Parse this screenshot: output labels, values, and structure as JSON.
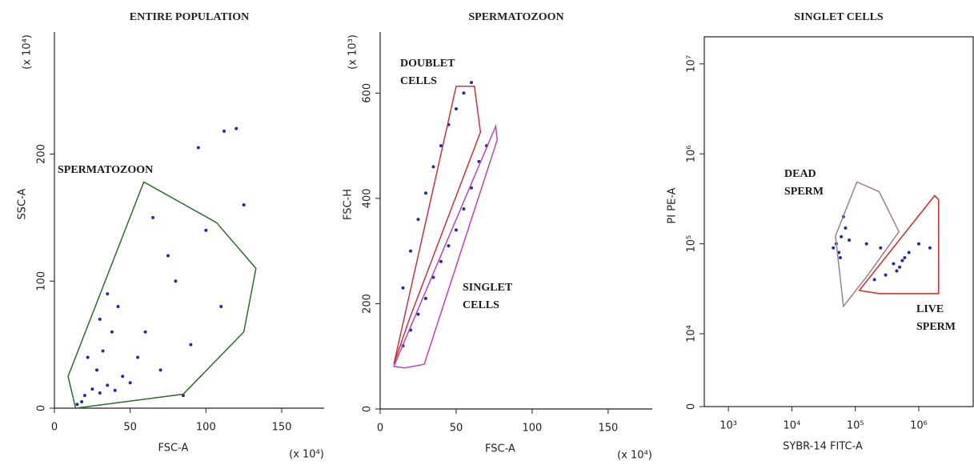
{
  "chart_data": [
    {
      "type": "scatter",
      "title": "ENTIRE POPULATION",
      "xlabel": "FSC-A",
      "xunit": "(x 10⁴)",
      "ylabel": "SSC-A",
      "yunit": "(x 10⁴)",
      "xlim": [
        0,
        178
      ],
      "ylim": [
        0,
        296
      ],
      "xticks": [
        0,
        50,
        100,
        150
      ],
      "yticks": [
        0,
        100,
        200
      ],
      "frame": "axes",
      "points": {
        "color": "#1f2fa0",
        "x": [
          20,
          25,
          30,
          35,
          40,
          28,
          32,
          38,
          42,
          22,
          45,
          50,
          18,
          15,
          30,
          35,
          55,
          60,
          70,
          80,
          90,
          100,
          110,
          120,
          112,
          95,
          75,
          65,
          125,
          85
        ],
        "y": [
          10,
          15,
          12,
          18,
          14,
          30,
          45,
          60,
          80,
          40,
          25,
          20,
          5,
          3,
          70,
          90,
          40,
          60,
          30,
          100,
          50,
          140,
          80,
          220,
          218,
          205,
          120,
          150,
          160,
          10
        ]
      },
      "gates": [
        {
          "label": [
            "SPERMATOZOON"
          ],
          "color": "#2e6b2e",
          "x": [
            9,
            59,
            107,
            133,
            125,
            85,
            14
          ],
          "y": [
            25,
            178,
            146,
            110,
            60,
            11,
            0
          ]
        }
      ]
    },
    {
      "type": "scatter",
      "title": "SPERMATOZOON",
      "xlabel": "FSC-A",
      "xunit": "(x 10⁴)",
      "ylabel": "FSC-H",
      "yunit": "(x 10³)",
      "xlim": [
        0,
        179
      ],
      "ylim": [
        0,
        716
      ],
      "xticks": [
        0,
        50,
        100,
        150
      ],
      "yticks": [
        0,
        200,
        400,
        600
      ],
      "frame": "axes",
      "points": {
        "color": "#1f2fa0",
        "x": [
          15,
          20,
          25,
          30,
          35,
          40,
          45,
          50,
          55,
          60,
          65,
          70,
          15,
          20,
          25,
          30,
          35,
          40,
          45,
          50,
          55,
          60
        ],
        "y": [
          120,
          150,
          180,
          210,
          250,
          280,
          310,
          340,
          380,
          420,
          470,
          500,
          230,
          300,
          360,
          410,
          460,
          500,
          540,
          570,
          600,
          620
        ]
      },
      "gates": [
        {
          "label": [
            "DOUBLET",
            "CELLS"
          ],
          "color": "#d0303a",
          "x": [
            9,
            50,
            62,
            66,
            19
          ],
          "y": [
            85,
            613,
            613,
            526,
            169
          ]
        },
        {
          "label": [
            "SINGLET",
            "CELLS"
          ],
          "color": "#c040c0",
          "x": [
            9,
            76,
            77,
            29,
            16
          ],
          "y": [
            81,
            537,
            511,
            85,
            78
          ]
        }
      ]
    },
    {
      "type": "scatter",
      "title": "SINGLET CELLS",
      "xlabel": "SYBR-14 FITC-A",
      "ylabel": "PI PE-A",
      "xscale": "log",
      "yscale": "symlog",
      "xlim": [
        417,
        7200000
      ],
      "ylim": [
        0,
        20000000
      ],
      "xticks": [
        {
          "value": 1000,
          "label": "10³"
        },
        {
          "value": 10000,
          "label": "10⁴"
        },
        {
          "value": 100000,
          "label": "10⁵"
        },
        {
          "value": 1000000,
          "label": "10⁶"
        }
      ],
      "yticks": [
        0,
        {
          "value": 10000,
          "label": "10⁴"
        },
        {
          "value": 100000,
          "label": "10⁵"
        },
        {
          "value": 1000000,
          "label": "10⁶"
        },
        {
          "value": 10000000,
          "label": "10⁷"
        }
      ],
      "frame": "box",
      "points": {
        "color": "#1f2fa0",
        "x": [
          50000,
          60000,
          55000,
          70000,
          45000,
          65000,
          80000,
          58000,
          400000,
          500000,
          600000,
          450000,
          700000,
          1000000,
          1500000,
          300000,
          200000,
          550000,
          150000,
          250000
        ],
        "y": [
          100000,
          120000,
          80000,
          150000,
          90000,
          200000,
          110000,
          70000,
          60000,
          55000,
          70000,
          50000,
          80000,
          100000,
          90000,
          45000,
          40000,
          65000,
          100000,
          90000
        ]
      },
      "gates": [
        {
          "label": [
            "DEAD",
            "SPERM"
          ],
          "color": "#a08080",
          "x": [
            48700,
            105900,
            237100,
            487000,
            154000,
            64900
          ],
          "y": [
            122700,
            487000,
            380000,
            136100,
            43950,
            20140
          ]
        },
        {
          "label": [
            "LIVE",
            "SPERM"
          ],
          "color": "#e02020",
          "x": [
            115500,
            1778000,
            2054000,
            2054000,
            237100
          ],
          "y": [
            30340,
            343600,
            309700,
            27950,
            27950
          ]
        }
      ]
    }
  ]
}
